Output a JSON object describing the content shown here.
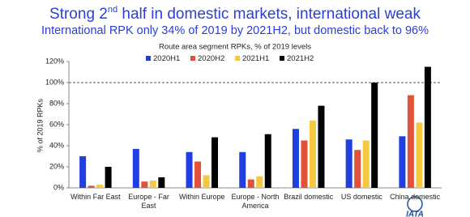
{
  "chart_data": {
    "type": "bar",
    "title": [
      "Strong 2",
      "nd",
      " half in domestic markets, international weak"
    ],
    "subtitle": "International RPK only 34% of 2019 by 2021H2, but domestic back to 96%",
    "chart_title": "Route area segment RPKs, % of 2019 levels",
    "y_label": "% of 2019 RPKs",
    "logo": "IATA",
    "categories": [
      "Within Far East",
      "Europe - Far East",
      "Within Europe",
      "Europe - North America",
      "Brazil domestic",
      "US domestic",
      "China domestic"
    ],
    "series": [
      {
        "name": "2020H1",
        "color": "#1f3fe0",
        "values": [
          30,
          37,
          34,
          34,
          56,
          46,
          49
        ]
      },
      {
        "name": "2020H2",
        "color": "#e0523a",
        "values": [
          2,
          6,
          25,
          8,
          45,
          36,
          88
        ]
      },
      {
        "name": "2021H1",
        "color": "#f5c842",
        "values": [
          3,
          7,
          12,
          11,
          64,
          45,
          62
        ]
      },
      {
        "name": "2021H2",
        "color": "#000000",
        "values": [
          20,
          10,
          48,
          51,
          78,
          100,
          115
        ]
      }
    ],
    "reference_line": 100,
    "ylim": [
      0,
      120
    ],
    "yticks": [
      {
        "value": 0,
        "label": "0%"
      },
      {
        "value": 20,
        "label": "20%"
      },
      {
        "value": 40,
        "label": "40%"
      },
      {
        "value": 60,
        "label": "60%"
      },
      {
        "value": 80,
        "label": "80%"
      },
      {
        "value": 100,
        "label": "100%"
      },
      {
        "value": 120,
        "label": "120%"
      }
    ],
    "grid": false
  }
}
